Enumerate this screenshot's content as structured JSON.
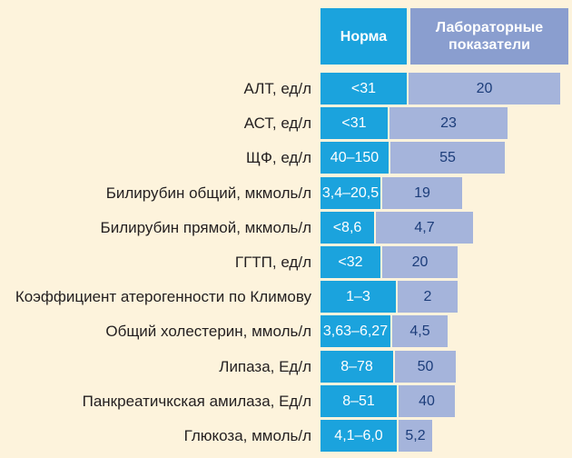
{
  "headers": {
    "norm": "Норма",
    "lab": "Лабораторные показатели"
  },
  "rows": [
    {
      "label": "АЛТ, ед/л",
      "norm": "<31",
      "lab": "20",
      "lab_value": 20
    },
    {
      "label": "АСТ, ед/л",
      "norm": "<31",
      "lab": "23",
      "lab_value": 23
    },
    {
      "label": "ЩФ, ед/л",
      "norm": "40–150",
      "lab": "55",
      "lab_value": 55
    },
    {
      "label": "Билирубин общий, мкмоль/л",
      "norm": "3,4–20,5",
      "lab": "19",
      "lab_value": 19
    },
    {
      "label": "Билирубин прямой, мкмоль/л",
      "norm": "<8,6",
      "lab": "4,7",
      "lab_value": 4.7
    },
    {
      "label": "ГГТП, ед/л",
      "norm": "<32",
      "lab": "20",
      "lab_value": 20
    },
    {
      "label": "Коэффициент атерогенности по Климову",
      "norm": "1–3",
      "lab": "2",
      "lab_value": 2
    },
    {
      "label": "Общий холестерин, ммоль/л",
      "norm": "3,63–6,27",
      "lab": "4,5",
      "lab_value": 4.5
    },
    {
      "label": "Липаза, Ед/л",
      "norm": "8–78",
      "lab": "50",
      "lab_value": 50
    },
    {
      "label": "Панкреатичкская амилаза, Ед/л",
      "norm": "8–51",
      "lab": "40",
      "lab_value": 40
    },
    {
      "label": "Глюкоза, ммоль/л",
      "norm": "4,1–6,0",
      "lab": "5,2",
      "lab_value": 5.2
    }
  ],
  "colors": {
    "background": "#fdf3dc",
    "norm": "#1ba3dd",
    "lab": "#a5b4db",
    "lab_header": "#8a9ecf",
    "lab_text": "#1c3d7a"
  }
}
